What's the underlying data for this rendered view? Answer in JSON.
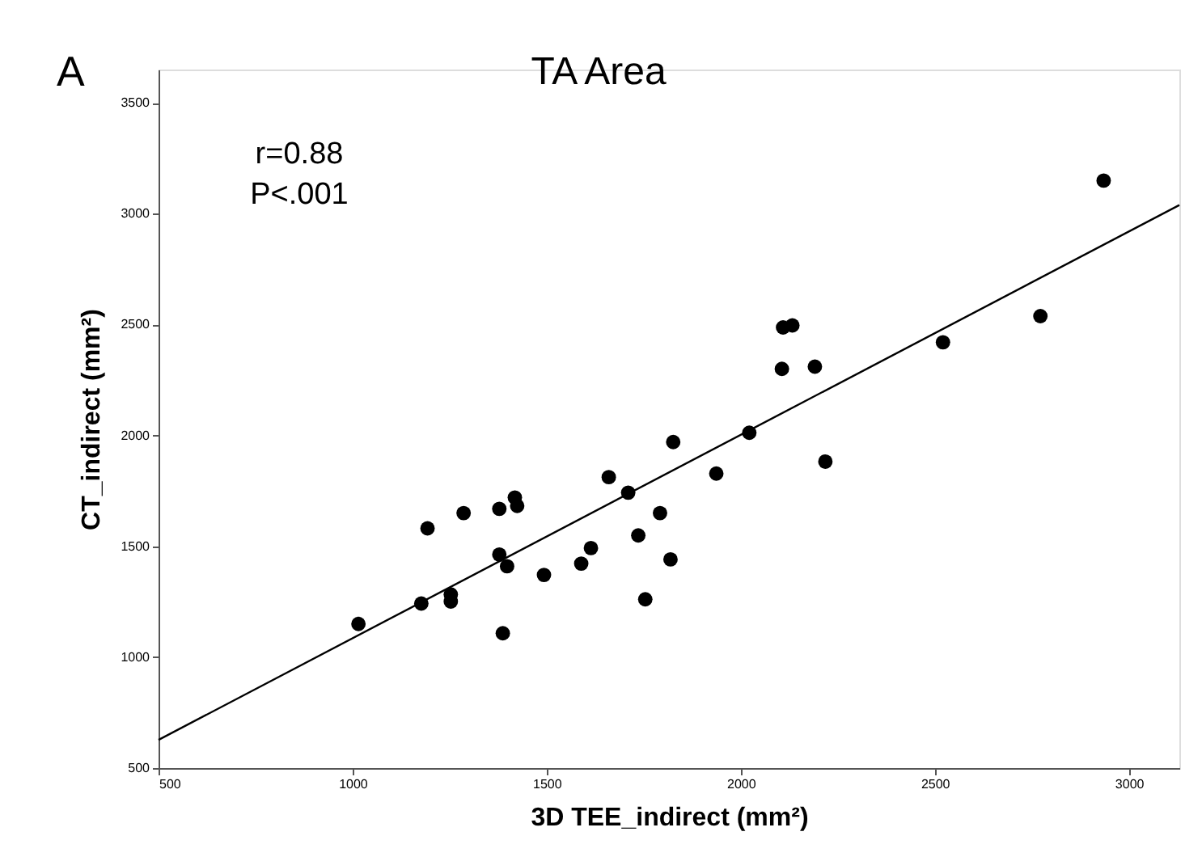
{
  "chart_data": {
    "type": "scatter",
    "title": "TA Area",
    "xlabel": "3D TEE_indirect (mm²)",
    "ylabel": "CT_indirect (mm²)",
    "annotations": [
      "A",
      "r=0.88",
      "P<.001"
    ],
    "xlim": [
      500,
      3130
    ],
    "ylim": [
      500,
      3650
    ],
    "xticks": [
      500,
      1000,
      1500,
      2000,
      2500,
      3000
    ],
    "yticks": [
      500,
      1000,
      1500,
      2000,
      2500,
      3000,
      3500
    ],
    "grid": false,
    "marker": "circle",
    "series": [
      {
        "color": "#000000",
        "x": [
          1015,
          1177,
          1193,
          1253,
          1253,
          1286,
          1378,
          1378,
          1387,
          1398,
          1418,
          1424,
          1493,
          1589,
          1614,
          1660,
          1710,
          1736,
          1754,
          1792,
          1819,
          1826,
          1937,
          2022,
          2218,
          2935,
          2772,
          2521,
          2106,
          2191,
          2109,
          2133
        ],
        "values": [
          1150,
          1242,
          1581,
          1283,
          1251,
          1650,
          1669,
          1463,
          1108,
          1410,
          1720,
          1682,
          1371,
          1422,
          1492,
          1812,
          1742,
          1549,
          1261,
          1650,
          1441,
          1970,
          1828,
          2012,
          1882,
          3149,
          2538,
          2420,
          2300,
          2310,
          2487,
          2496
        ]
      },
      {
        "type": "line",
        "color": "#000000",
        "marker": "none",
        "x": [
          500,
          3130
        ],
        "values": [
          627,
          3039
        ]
      }
    ]
  }
}
